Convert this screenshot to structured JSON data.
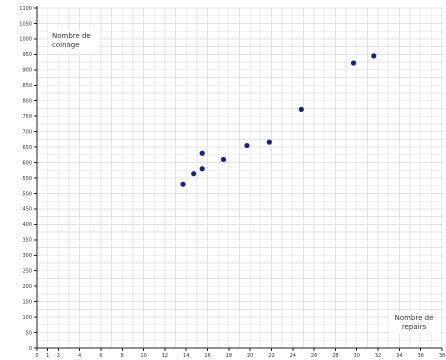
{
  "chart_data": {
    "type": "scatter",
    "title": "",
    "xlabel": [
      "Nombre de",
      "repairs"
    ],
    "ylabel": [
      "Nombre de",
      "coinage"
    ],
    "xlim": [
      0,
      38
    ],
    "ylim": [
      0,
      1100
    ],
    "x_tick_labels": [
      "0",
      "1",
      "2",
      "4",
      "6",
      "8",
      "10",
      "12",
      "14",
      "16",
      "18",
      "20",
      "22",
      "24",
      "26",
      "28",
      "30",
      "32",
      "34",
      "36",
      "38"
    ],
    "y_tick_labels": [
      "0",
      "50",
      "100",
      "150",
      "200",
      "250",
      "300",
      "350",
      "400",
      "450",
      "500",
      "550",
      "600",
      "650",
      "700",
      "750",
      "800",
      "850",
      "900",
      "950",
      "1000",
      "1050",
      "1100"
    ],
    "grid": true,
    "legend": "none",
    "marker_color": "#1a1f8c",
    "series": [
      {
        "x": [
          13.7,
          14.7,
          15.5,
          15.5,
          17.5,
          19.7,
          21.8,
          24.8,
          29.7,
          31.6
        ],
        "y": [
          530,
          564,
          580,
          630,
          610,
          655,
          666,
          772,
          922,
          945
        ]
      }
    ]
  }
}
